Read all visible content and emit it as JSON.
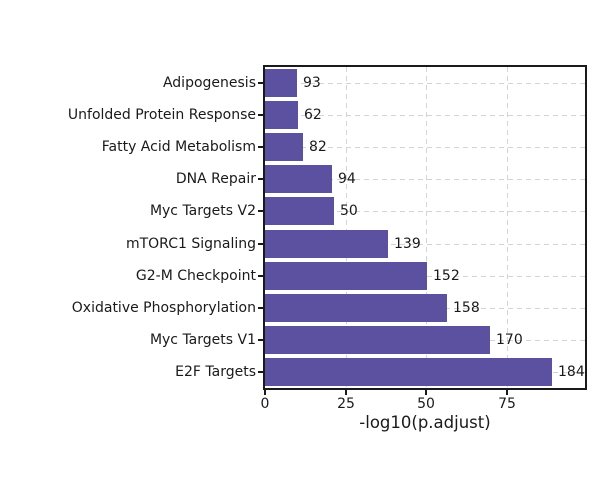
{
  "figure": {
    "background_color": "#ffffff"
  },
  "chart_data": {
    "type": "bar",
    "orientation": "horizontal",
    "title": "",
    "xlabel": "-log10(p.adjust)",
    "ylabel": "",
    "categories": [
      "Adipogenesis",
      "Unfolded Protein Response",
      "Fatty Acid Metabolism",
      "DNA Repair",
      "Myc Targets V2",
      "mTORC1 Signaling",
      "G2-M Checkpoint",
      "Oxidative Phosphorylation",
      "Myc Targets V1",
      "E2F Targets"
    ],
    "values": [
      9.9,
      10.2,
      11.8,
      20.9,
      21.3,
      38.2,
      50.2,
      56.4,
      69.8,
      88.9
    ],
    "bar_end_labels": [
      "93",
      "62",
      "82",
      "94",
      "50",
      "139",
      "152",
      "158",
      "170",
      "184"
    ],
    "x_ticks": [
      0,
      25,
      50,
      75
    ],
    "xlim": [
      0,
      99.2
    ],
    "grid": "dashed gridlines on both axes",
    "legend": "none",
    "colors": {
      "bar_fill": "#5c51a0",
      "grid_line": "#d4d4d4",
      "axis_border": "#1a1a1a",
      "text": "#1a1a1a"
    }
  }
}
